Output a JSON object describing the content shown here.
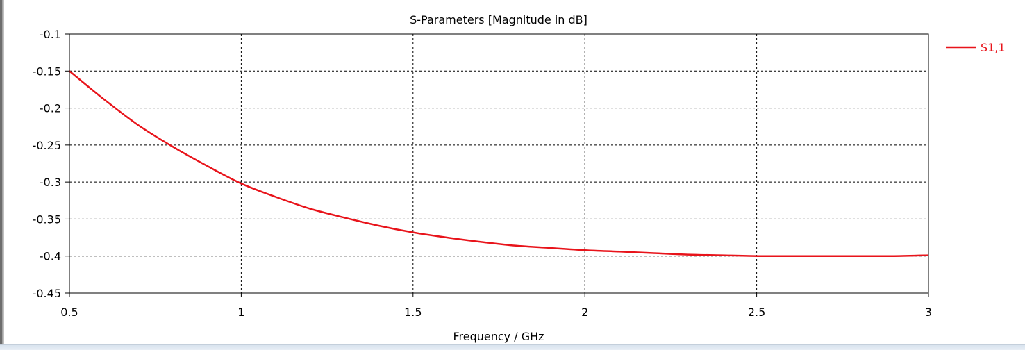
{
  "chart_data": {
    "type": "line",
    "title": "S-Parameters [Magnitude in dB]",
    "xlabel": "Frequency / GHz",
    "ylabel": "",
    "xlim": [
      0.5,
      3
    ],
    "ylim": [
      -0.45,
      -0.1
    ],
    "xticks": [
      "0.5",
      "1",
      "1.5",
      "2",
      "2.5",
      "3"
    ],
    "yticks": [
      "-0.1",
      "-0.15",
      "-0.2",
      "-0.25",
      "-0.3",
      "-0.35",
      "-0.4",
      "-0.45"
    ],
    "grid": true,
    "legend_position": "top-right",
    "series": [
      {
        "name": "S1,1",
        "color": "#e8141b",
        "x": [
          0.5,
          0.6,
          0.7,
          0.8,
          0.9,
          1.0,
          1.1,
          1.2,
          1.3,
          1.4,
          1.5,
          1.6,
          1.7,
          1.8,
          1.9,
          2.0,
          2.1,
          2.2,
          2.3,
          2.4,
          2.5,
          2.6,
          2.7,
          2.8,
          2.9,
          3.0
        ],
        "y": [
          -0.15,
          -0.188,
          -0.223,
          -0.252,
          -0.278,
          -0.302,
          -0.32,
          -0.336,
          -0.348,
          -0.359,
          -0.368,
          -0.375,
          -0.381,
          -0.386,
          -0.389,
          -0.392,
          -0.394,
          -0.396,
          -0.398,
          -0.399,
          -0.4,
          -0.4,
          -0.4,
          -0.4,
          -0.4,
          -0.399
        ]
      }
    ]
  }
}
